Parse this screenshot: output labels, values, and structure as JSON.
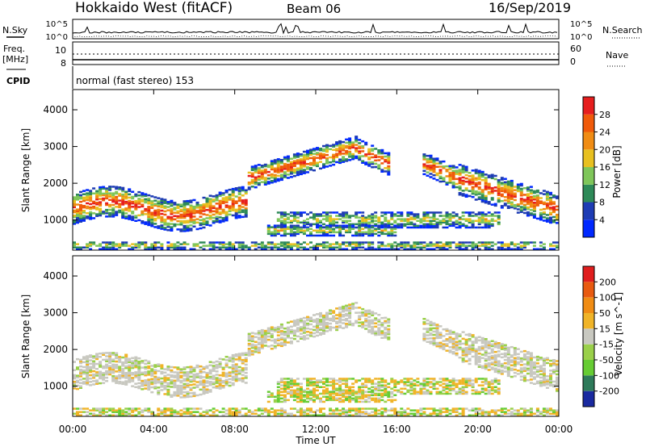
{
  "header": {
    "title": "Hokkaido West (fitACF)",
    "beam": "Beam 06",
    "date": "16/Sep/2019"
  },
  "top_panels": {
    "nsky_label": "N.Sky",
    "nsearch_label": "N.Search",
    "noise_ticks_left": [
      "10^5",
      "10^0"
    ],
    "noise_ticks_right": [
      "10^5",
      "10^0"
    ],
    "freq_label": "Freq.",
    "freq_unit": "[MHz]",
    "freq_ticks": [
      "10",
      "8"
    ],
    "nave_label": "Nave",
    "nave_ticks": [
      "60",
      "0"
    ],
    "cpid_label": "CPID",
    "cpid_text": "normal (fast stereo) 153"
  },
  "chart_data": [
    {
      "type": "heatmap",
      "name": "power",
      "ylabel": "Slant Range [km]",
      "ylim": [
        180,
        4550
      ],
      "yticks": [
        "1000",
        "2000",
        "3000",
        "4000"
      ],
      "xlim": [
        0,
        24
      ],
      "xticks": [
        "00:00",
        "04:00",
        "08:00",
        "12:00",
        "16:00",
        "20:00",
        "00:00"
      ],
      "colorbar": {
        "label": "Power [dB]",
        "ticks": [
          "4",
          "8",
          "12",
          "16",
          "20",
          "24",
          "28"
        ],
        "colors": [
          "#0028ff",
          "#1e3cb4",
          "#2e8a58",
          "#7fc65a",
          "#e8c020",
          "#f08c14",
          "#f05a0a",
          "#e61e1e"
        ]
      }
    },
    {
      "type": "heatmap",
      "name": "velocity",
      "ylabel": "Slant Range [km]",
      "ylim": [
        180,
        4550
      ],
      "yticks": [
        "1000",
        "2000",
        "3000",
        "4000"
      ],
      "xlim": [
        0,
        24
      ],
      "xticks": [
        "00:00",
        "04:00",
        "08:00",
        "12:00",
        "16:00",
        "20:00",
        "00:00"
      ],
      "xlabel": "Time UT",
      "colorbar": {
        "label": "Velocity [m s^-1]",
        "ticks": [
          "200",
          "100",
          "50",
          "15",
          "-15",
          "-50",
          "-100",
          "-200"
        ],
        "colors": [
          "#1a2aa0",
          "#2e7a5a",
          "#66cc33",
          "#9ad04a",
          "#c8c8c0",
          "#f0b428",
          "#f08c14",
          "#e85a10",
          "#e01e1e"
        ]
      }
    }
  ]
}
